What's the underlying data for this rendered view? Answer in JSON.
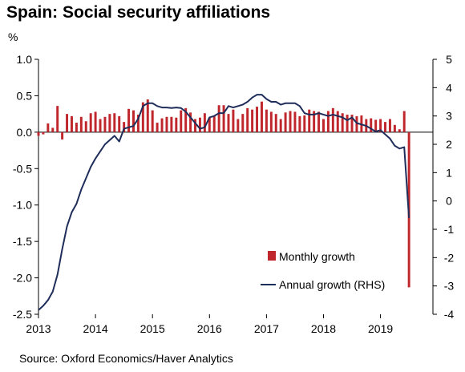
{
  "chart_data": {
    "type": "bar",
    "title": "Spain: Social security affiliations",
    "unit_label": "%",
    "source": "Source: Oxford Economics/Haver Analytics",
    "x_ticks": [
      "2013",
      "2014",
      "2015",
      "2016",
      "2017",
      "2018",
      "2019"
    ],
    "x_range": [
      2013.0,
      2019.92
    ],
    "y_left": {
      "min": -2.5,
      "max": 1.0,
      "ticks": [
        "1.0",
        "0.5",
        "0.0",
        "-0.5",
        "-1.0",
        "-1.5",
        "-2.0",
        "-2.5"
      ]
    },
    "y_right": {
      "min": -4,
      "max": 5,
      "ticks": [
        "5",
        "4",
        "3",
        "2",
        "1",
        "0",
        "-1",
        "-2",
        "-3",
        "-4"
      ]
    },
    "legend": {
      "position": "bottom-right",
      "entries": [
        "Monthly growth",
        "Annual growth (RHS)"
      ]
    },
    "colors": {
      "bars": "#c0272d",
      "line": "#1f2d5a",
      "axis": "#000000"
    },
    "series": [
      {
        "name": "Monthly growth",
        "axis": "left",
        "type": "bar",
        "x_start": "2013-01",
        "values": [
          -0.05,
          -0.03,
          0.12,
          0.06,
          0.36,
          -0.1,
          0.25,
          0.22,
          0.13,
          0.21,
          0.15,
          0.26,
          0.28,
          0.18,
          0.21,
          0.25,
          0.26,
          0.22,
          0.14,
          0.32,
          0.3,
          0.24,
          0.41,
          0.45,
          0.3,
          0.13,
          0.19,
          0.21,
          0.21,
          0.2,
          0.3,
          0.33,
          0.27,
          0.18,
          0.2,
          0.26,
          0.2,
          0.23,
          0.37,
          0.37,
          0.25,
          0.31,
          0.18,
          0.25,
          0.33,
          0.31,
          0.35,
          0.42,
          0.31,
          0.28,
          0.25,
          0.18,
          0.27,
          0.29,
          0.28,
          0.22,
          0.23,
          0.31,
          0.29,
          0.28,
          0.18,
          0.29,
          0.33,
          0.29,
          0.26,
          0.24,
          0.24,
          0.22,
          0.23,
          0.18,
          0.19,
          0.17,
          0.18,
          0.14,
          0.18,
          0.1,
          0.04,
          0.29,
          -2.13
        ]
      },
      {
        "name": "Annual growth (RHS)",
        "axis": "right",
        "type": "line",
        "x_start": "2013-01",
        "values": [
          -3.85,
          -3.7,
          -3.5,
          -3.2,
          -2.6,
          -1.7,
          -0.9,
          -0.4,
          -0.1,
          0.4,
          0.8,
          1.2,
          1.5,
          1.75,
          2.0,
          2.15,
          2.3,
          2.1,
          2.55,
          2.6,
          2.65,
          2.9,
          3.35,
          3.45,
          3.45,
          3.35,
          3.3,
          3.3,
          3.28,
          3.3,
          3.28,
          3.15,
          2.95,
          2.75,
          2.55,
          2.6,
          2.95,
          3.0,
          3.1,
          3.1,
          3.35,
          3.3,
          3.35,
          3.4,
          3.5,
          3.65,
          3.75,
          3.75,
          3.6,
          3.5,
          3.5,
          3.4,
          3.45,
          3.45,
          3.45,
          3.35,
          3.1,
          3.05,
          3.05,
          3.1,
          3.05,
          3.0,
          3.05,
          3.0,
          2.95,
          2.85,
          2.95,
          2.75,
          2.7,
          2.65,
          2.55,
          2.45,
          2.5,
          2.35,
          2.2,
          1.95,
          1.85,
          1.9,
          -0.6
        ]
      }
    ]
  }
}
